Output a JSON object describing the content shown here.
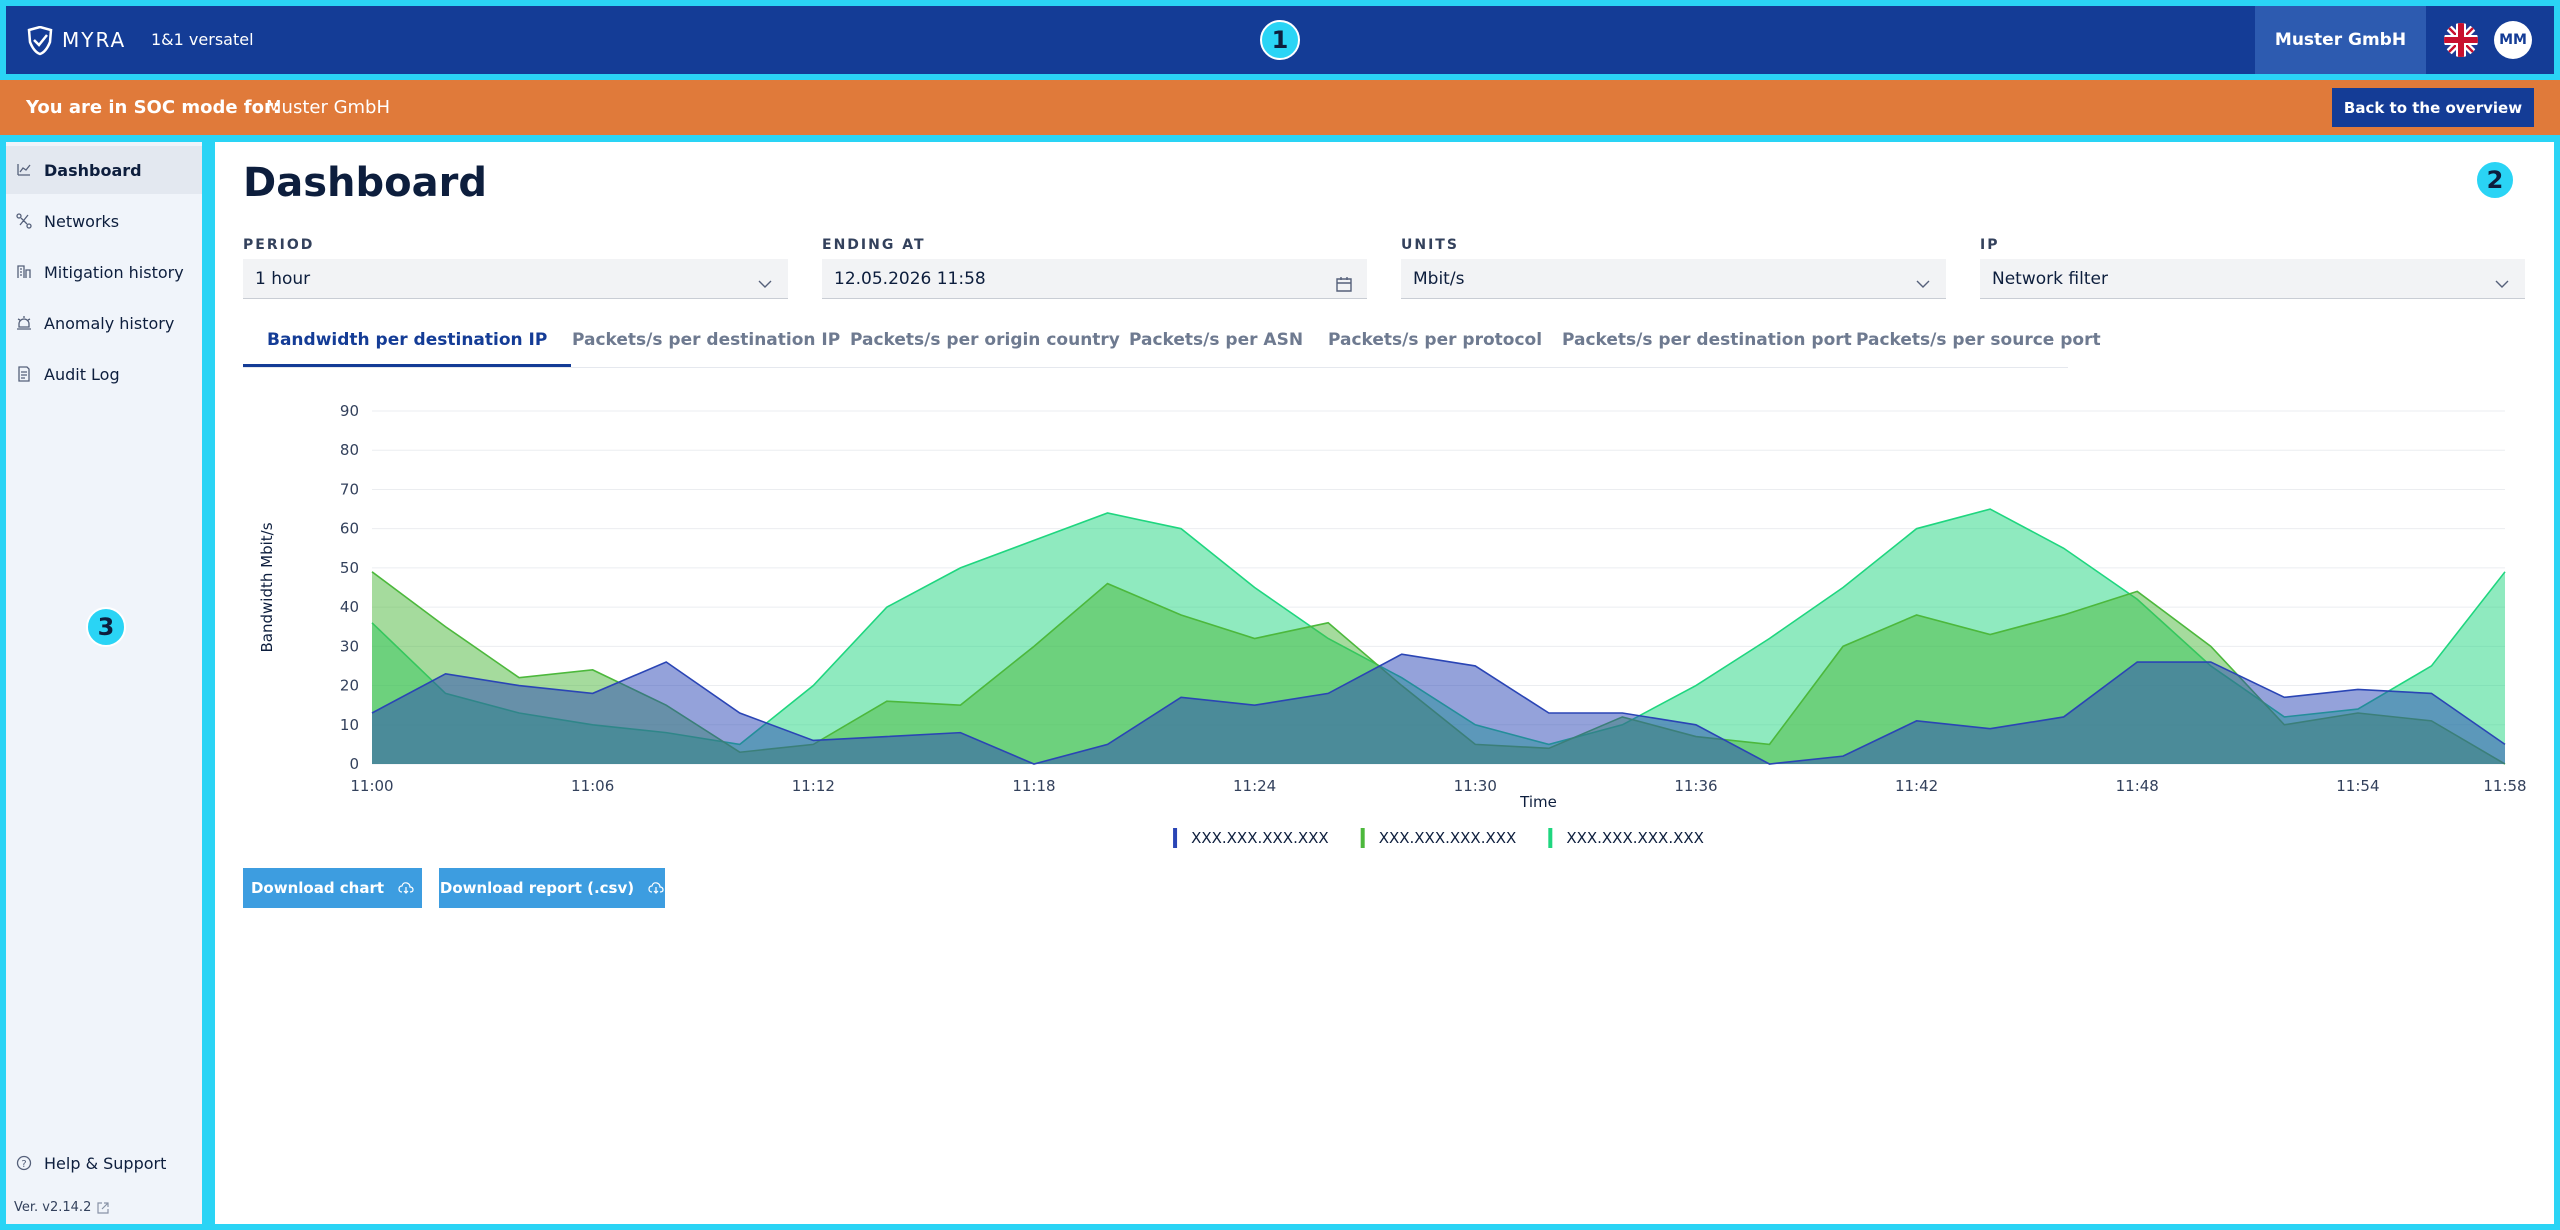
{
  "header": {
    "badge": "1",
    "logo": "MYRA",
    "partner": "1&1 versatel",
    "company": "Muster GmbH",
    "avatar": "MM"
  },
  "banner": {
    "label": "You are in SOC mode for:",
    "company": "Muster GmbH",
    "button": "Back to the overview"
  },
  "sidebar": {
    "badge": "3",
    "items": [
      "Dashboard",
      "Networks",
      "Mitigation history",
      "Anomaly history",
      "Audit Log"
    ],
    "help": "Help & Support",
    "version": "Ver. v2.14.2"
  },
  "main": {
    "badge": "2",
    "title": "Dashboard",
    "filters": [
      {
        "label": "PERIOD",
        "value": "1 hour"
      },
      {
        "label": "ENDING AT",
        "value": "12.05.2026 11:58"
      },
      {
        "label": "UNITS",
        "value": "Mbit/s"
      },
      {
        "label": "IP",
        "value": "Network filter"
      }
    ],
    "tabs": [
      "Bandwidth per destination IP",
      "Packets/s per destination IP",
      "Packets/s per origin country",
      "Packets/s per ASN",
      "Packets/s per protocol",
      "Packets/s per destination port",
      "Packets/s per source port"
    ],
    "buttons": [
      "Download chart",
      "Download report (.csv)"
    ]
  },
  "chart_data": {
    "type": "area",
    "x_label": "Time",
    "y_label": "Bandwidth Mbit/s",
    "categories": [
      "11:00",
      null,
      null,
      "11:06",
      null,
      null,
      "11:12",
      null,
      null,
      "11:18",
      null,
      null,
      "11:24",
      null,
      null,
      "11:30",
      null,
      null,
      "11:36",
      null,
      null,
      "11:42",
      null,
      null,
      "11:48",
      null,
      null,
      "11:54",
      null,
      "11:58"
    ],
    "ylim": [
      0,
      90
    ],
    "yticks": [
      0,
      10,
      20,
      30,
      40,
      50,
      60,
      70,
      80,
      90
    ],
    "grid": true,
    "legend": "bottom",
    "series": [
      {
        "name": "XXX.XXX.XXX.XXX",
        "color": "#2a45b5",
        "values": [
          13,
          23,
          20,
          18,
          26,
          13,
          6,
          7,
          8,
          0,
          5,
          17,
          15,
          18,
          28,
          25,
          13,
          13,
          10,
          0,
          2,
          11,
          9,
          12,
          26,
          26,
          17,
          19,
          18,
          5
        ]
      },
      {
        "name": "XXX.XXX.XXX.XXX",
        "color": "#4cb83c",
        "values": [
          49,
          35,
          22,
          24,
          15,
          3,
          5,
          16,
          15,
          30,
          46,
          38,
          32,
          36,
          20,
          5,
          4,
          12,
          7,
          5,
          30,
          38,
          33,
          38,
          44,
          30,
          10,
          13,
          11,
          0
        ]
      },
      {
        "name": "XXX.XXX.XXX.XXX",
        "color": "#1fd67f",
        "values": [
          36,
          18,
          13,
          10,
          8,
          5,
          20,
          40,
          50,
          57,
          64,
          60,
          45,
          32,
          22,
          10,
          5,
          10,
          20,
          32,
          45,
          60,
          65,
          55,
          42,
          25,
          12,
          14,
          25,
          49
        ]
      }
    ]
  }
}
